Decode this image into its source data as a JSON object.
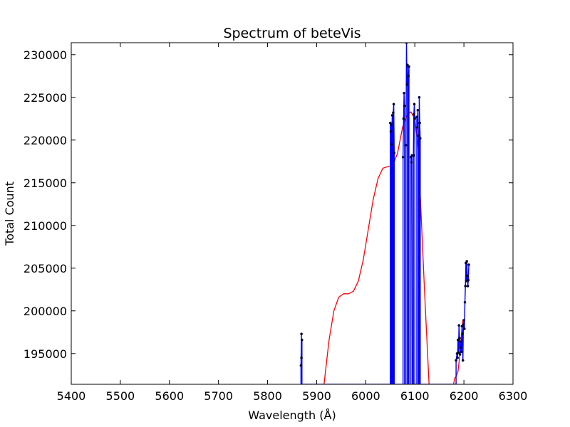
{
  "chart_data": {
    "type": "line",
    "title": "Spectrum of beteVis",
    "xlabel": "Wavelength (Å)",
    "ylabel": "Total Count",
    "xlim": [
      5400,
      6300
    ],
    "ylim": [
      191400,
      231400
    ],
    "x_ticks": [
      5400,
      5500,
      5600,
      5700,
      5800,
      5900,
      6000,
      6100,
      6200,
      6300
    ],
    "x_tick_labels": [
      "5400",
      "5500",
      "5600",
      "5700",
      "5800",
      "5900",
      "6000",
      "6100",
      "6200",
      "6300"
    ],
    "y_ticks": [
      195000,
      200000,
      205000,
      210000,
      215000,
      220000,
      225000,
      230000
    ],
    "y_tick_labels": [
      "195000",
      "200000",
      "205000",
      "210000",
      "215000",
      "220000",
      "225000",
      "230000"
    ],
    "grid": false,
    "series": [
      {
        "kind": "fit-curve",
        "color": "#ff0000",
        "points": [
          [
            5910,
            189000
          ],
          [
            5915,
            191400
          ],
          [
            5925,
            196500
          ],
          [
            5935,
            200000
          ],
          [
            5945,
            201600
          ],
          [
            5955,
            202000
          ],
          [
            5965,
            202000
          ],
          [
            5975,
            202300
          ],
          [
            5985,
            203500
          ],
          [
            5995,
            206000
          ],
          [
            6005,
            209500
          ],
          [
            6015,
            213000
          ],
          [
            6025,
            215500
          ],
          [
            6035,
            216700
          ],
          [
            6045,
            216900
          ],
          [
            6055,
            217000
          ],
          [
            6065,
            218500
          ],
          [
            6075,
            221500
          ],
          [
            6085,
            223000
          ],
          [
            6092,
            223300
          ],
          [
            6100,
            222500
          ],
          [
            6107,
            219000
          ],
          [
            6113,
            211000
          ],
          [
            6120,
            202000
          ],
          [
            6126,
            195000
          ],
          [
            6131,
            189000
          ]
        ]
      },
      {
        "kind": "fit-curve",
        "color": "#ff0000",
        "points": [
          [
            6179,
            191400
          ],
          [
            6181,
            192100
          ],
          [
            6184,
            192300
          ],
          [
            6188,
            192900
          ],
          [
            6192,
            195000
          ],
          [
            6196,
            198000
          ],
          [
            6198,
            199000
          ]
        ]
      },
      {
        "kind": "spectrum-line",
        "color": "#0000ff",
        "marker_color": "#000033",
        "points": [
          [
            5868,
            191400
          ],
          [
            5868,
            193600
          ],
          [
            5869,
            197300
          ],
          [
            5869,
            194500
          ],
          [
            5870,
            196600
          ],
          [
            5870,
            191400
          ],
          [
            6050,
            191400
          ],
          [
            6050,
            222000
          ],
          [
            6051,
            221000
          ],
          [
            6051,
            191400
          ],
          [
            6052,
            191400
          ],
          [
            6052,
            221800
          ],
          [
            6053,
            219500
          ],
          [
            6054,
            222900
          ],
          [
            6054,
            191400
          ],
          [
            6056,
            191400
          ],
          [
            6056,
            223200
          ],
          [
            6057,
            224200
          ],
          [
            6058,
            218500
          ],
          [
            6058,
            191400
          ],
          [
            6076,
            191400
          ],
          [
            6076,
            218000
          ],
          [
            6077,
            222500
          ],
          [
            6078,
            225500
          ],
          [
            6079,
            224000
          ],
          [
            6079,
            191400
          ],
          [
            6082,
            191400
          ],
          [
            6082,
            219400
          ],
          [
            6083,
            231400
          ],
          [
            6084,
            226500
          ],
          [
            6085,
            228800
          ],
          [
            6085,
            191400
          ],
          [
            6087,
            191400
          ],
          [
            6087,
            227500
          ],
          [
            6088,
            228600
          ],
          [
            6088,
            191400
          ],
          [
            6092,
            191400
          ],
          [
            6092,
            218000
          ],
          [
            6093,
            217400
          ],
          [
            6094,
            218200
          ],
          [
            6095,
            191400
          ],
          [
            6097,
            191400
          ],
          [
            6097,
            218200
          ],
          [
            6098,
            223000
          ],
          [
            6099,
            224200
          ],
          [
            6100,
            222500
          ],
          [
            6100,
            191400
          ],
          [
            6104,
            191400
          ],
          [
            6104,
            222700
          ],
          [
            6105,
            221500
          ],
          [
            6106,
            223500
          ],
          [
            6107,
            220500
          ],
          [
            6107,
            191400
          ],
          [
            6109,
            191400
          ],
          [
            6109,
            225000
          ],
          [
            6110,
            222000
          ],
          [
            6111,
            220200
          ],
          [
            6111,
            191400
          ],
          [
            6184,
            191400
          ],
          [
            6184,
            194200
          ],
          [
            6186,
            195000
          ],
          [
            6187,
            194500
          ],
          [
            6188,
            196600
          ],
          [
            6189,
            195100
          ],
          [
            6190,
            198300
          ],
          [
            6191,
            196800
          ],
          [
            6192,
            194900
          ],
          [
            6193,
            195700
          ],
          [
            6194,
            196400
          ],
          [
            6195,
            195200
          ],
          [
            6196,
            198200
          ],
          [
            6197,
            197300
          ],
          [
            6198,
            194200
          ],
          [
            6199,
            198400
          ],
          [
            6200,
            198900
          ],
          [
            6201,
            197900
          ],
          [
            6202,
            201000
          ],
          [
            6203,
            202900
          ],
          [
            6204,
            205600
          ],
          [
            6205,
            203500
          ],
          [
            6206,
            205800
          ],
          [
            6207,
            204100
          ],
          [
            6208,
            202900
          ],
          [
            6209,
            203600
          ],
          [
            6210,
            205400
          ]
        ]
      }
    ]
  }
}
